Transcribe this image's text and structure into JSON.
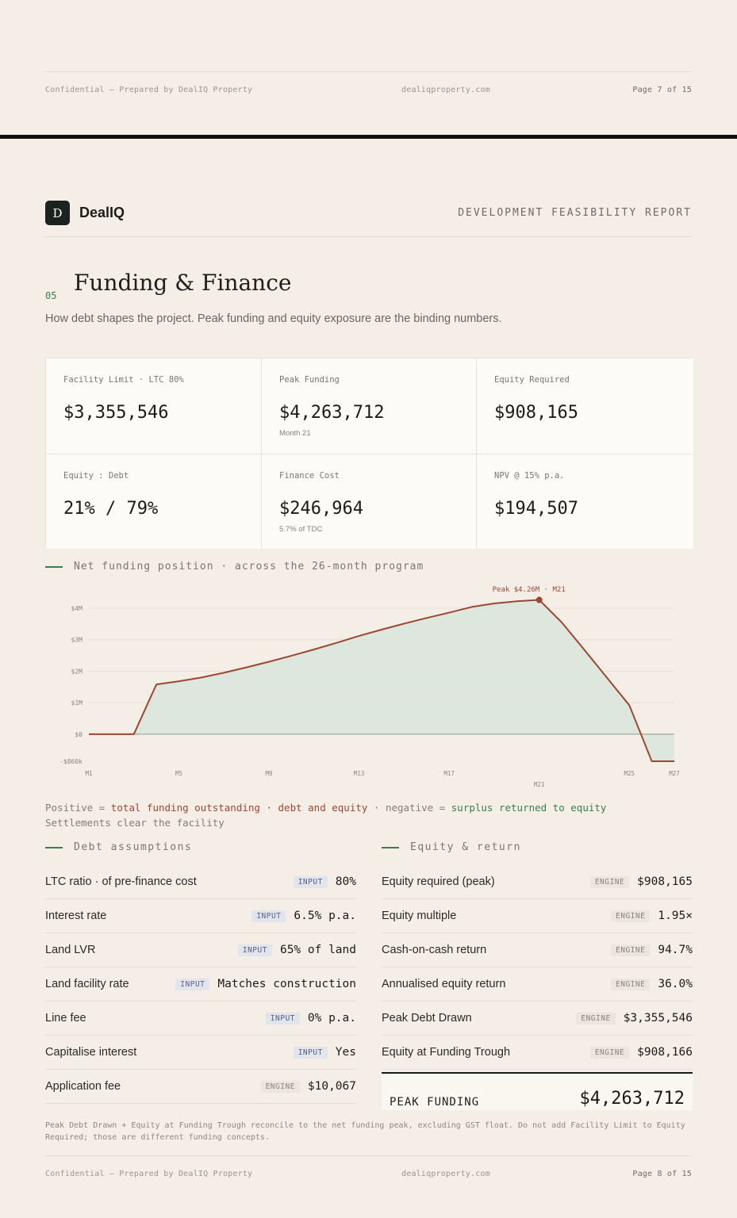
{
  "page7_footer": {
    "left": "Confidential — Prepared by DealIQ Property",
    "mid": "dealiqproperty.com",
    "right": "Page 7 of 15"
  },
  "header": {
    "brand_mark": "D",
    "brand_name": "DealIQ",
    "report_title": "DEVELOPMENT FEASIBILITY REPORT"
  },
  "section": {
    "number": "05",
    "title": "Funding & Finance",
    "subtitle": "How debt shapes the project. Peak funding and equity exposure are the binding numbers."
  },
  "kpis": [
    {
      "label": "Facility Limit · LTC 80%",
      "value": "$3,355,546",
      "note": ""
    },
    {
      "label": "Peak Funding",
      "value": "$4,263,712",
      "note": "Month 21"
    },
    {
      "label": "Equity Required",
      "value": "$908,165",
      "note": ""
    },
    {
      "label": "Equity : Debt",
      "value": "21% / 79%",
      "note": ""
    },
    {
      "label": "Finance Cost",
      "value": "$246,964",
      "note": "5.7% of TDC"
    },
    {
      "label": "NPV @ 15% p.a.",
      "value": "$194,507",
      "note": ""
    }
  ],
  "chart_caption": "Net funding position · across the 26-month program",
  "chart_data": {
    "type": "area",
    "ylim": [
      -860000,
      4500000
    ],
    "y_ticks": [
      {
        "value": 4000000,
        "label": "$4M"
      },
      {
        "value": 3000000,
        "label": "$3M"
      },
      {
        "value": 2000000,
        "label": "$2M"
      },
      {
        "value": 1000000,
        "label": "$1M"
      },
      {
        "value": 0,
        "label": "$0"
      },
      {
        "value": -860000,
        "label": "-$860k"
      }
    ],
    "x_ticks": [
      {
        "month": 1,
        "label": "M1"
      },
      {
        "month": 5,
        "label": "M5"
      },
      {
        "month": 9,
        "label": "M9"
      },
      {
        "month": 13,
        "label": "M13"
      },
      {
        "month": 17,
        "label": "M17"
      },
      {
        "month": 21,
        "label": "M21"
      },
      {
        "month": 25,
        "label": "M25"
      },
      {
        "month": 27,
        "label": "M27"
      }
    ],
    "x": [
      1,
      3,
      4,
      5,
      6,
      7,
      8,
      9,
      10,
      11,
      12,
      13,
      14,
      15,
      16,
      17,
      18,
      19,
      20,
      21,
      22,
      23,
      24,
      25,
      26,
      27
    ],
    "values": [
      0,
      0,
      1580000,
      1680000,
      1800000,
      1950000,
      2120000,
      2300000,
      2490000,
      2690000,
      2900000,
      3120000,
      3320000,
      3510000,
      3690000,
      3860000,
      4040000,
      4150000,
      4220000,
      4263712,
      3550000,
      2680000,
      1800000,
      920000,
      -860000,
      -860000
    ],
    "annotation": "Peak $4.26M · M21",
    "peak_month": 21,
    "peak_value": 4263712
  },
  "legend": {
    "pos_label": "Positive = ",
    "pos_emph": "total funding outstanding · debt and equity",
    "neg_label": " · negative = ",
    "neg_emph": "surplus returned to equity",
    "line2": "Settlements clear the facility"
  },
  "debt": {
    "heading": "Debt assumptions",
    "rows": [
      {
        "label": "LTC ratio · of pre-finance cost",
        "badge": "INPUT",
        "value": "80%"
      },
      {
        "label": "Interest rate",
        "badge": "INPUT",
        "value": "6.5% p.a."
      },
      {
        "label": "Land LVR",
        "badge": "INPUT",
        "value": "65% of land"
      },
      {
        "label": "Land facility rate",
        "badge": "INPUT",
        "value": "Matches construction"
      },
      {
        "label": "Line fee",
        "badge": "INPUT",
        "value": "0% p.a."
      },
      {
        "label": "Capitalise interest",
        "badge": "INPUT",
        "value": "Yes"
      },
      {
        "label": "Application fee",
        "badge": "ENGINE",
        "value": "$10,067"
      }
    ]
  },
  "equity": {
    "heading": "Equity & return",
    "rows": [
      {
        "label": "Equity required (peak)",
        "badge": "ENGINE",
        "value": "$908,165"
      },
      {
        "label": "Equity multiple",
        "badge": "ENGINE",
        "value": "1.95×"
      },
      {
        "label": "Cash-on-cash return",
        "badge": "ENGINE",
        "value": "94.7%"
      },
      {
        "label": "Annualised equity return",
        "badge": "ENGINE",
        "value": "36.0%"
      },
      {
        "label": "Peak Debt Drawn",
        "badge": "ENGINE",
        "value": "$3,355,546"
      },
      {
        "label": "Equity at Funding Trough",
        "badge": "ENGINE",
        "value": "$908,166"
      }
    ],
    "peak_label": "PEAK FUNDING",
    "peak_value": "$4,263,712"
  },
  "foot_note": "Peak Debt Drawn + Equity at Funding Trough reconcile to the net funding peak, excluding GST float. Do not add Facility Limit to Equity Required; those are different funding concepts.",
  "colors": {
    "accent_green": "#3b7d53",
    "line_red": "#9a4734",
    "area_fill": "#dce6dc"
  },
  "page8_footer": {
    "left": "Confidential — Prepared by DealIQ Property",
    "mid": "dealiqproperty.com",
    "right": "Page 8 of 15"
  }
}
